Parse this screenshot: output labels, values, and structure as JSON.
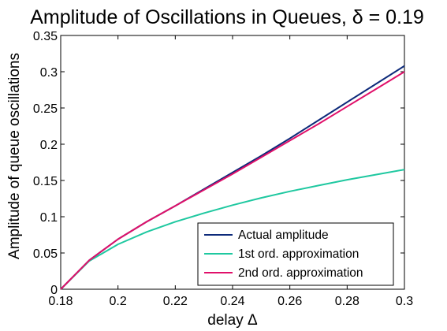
{
  "chart_data": {
    "type": "line",
    "title": "Amplitude of Oscillations in Queues, δ = 0.19",
    "xlabel": "delay Δ",
    "ylabel": "Amplitude of queue oscillations",
    "xlim": [
      0.18,
      0.3
    ],
    "ylim": [
      0,
      0.35
    ],
    "xticks": [
      0.18,
      0.2,
      0.22,
      0.24,
      0.26,
      0.28,
      0.3
    ],
    "xtick_labels": [
      "0.18",
      "0.2",
      "0.22",
      "0.24",
      "0.26",
      "0.28",
      "0.3"
    ],
    "yticks": [
      0,
      0.05,
      0.1,
      0.15,
      0.2,
      0.25,
      0.3,
      0.35
    ],
    "ytick_labels": [
      "0",
      "0.05",
      "0.1",
      "0.15",
      "0.2",
      "0.25",
      "0.3",
      "0.35"
    ],
    "grid": false,
    "legend_position": "bottom-right",
    "series": [
      {
        "name": "Actual amplitude",
        "color": "#0d2a7a",
        "x": [
          0.18,
          0.19,
          0.2,
          0.21,
          0.22,
          0.23,
          0.24,
          0.25,
          0.26,
          0.27,
          0.28,
          0.29,
          0.3
        ],
        "values": [
          0,
          0.04,
          0.069,
          0.093,
          0.115,
          0.138,
          0.161,
          0.184,
          0.208,
          0.233,
          0.258,
          0.283,
          0.308
        ]
      },
      {
        "name": "1st ord. approximation",
        "color": "#1fc8a0",
        "x": [
          0.18,
          0.19,
          0.2,
          0.21,
          0.22,
          0.23,
          0.24,
          0.25,
          0.26,
          0.27,
          0.28,
          0.29,
          0.3
        ],
        "values": [
          0,
          0.039,
          0.062,
          0.079,
          0.093,
          0.105,
          0.116,
          0.126,
          0.135,
          0.143,
          0.151,
          0.158,
          0.165
        ]
      },
      {
        "name": "2nd ord. approximation",
        "color": "#e0106a",
        "x": [
          0.18,
          0.19,
          0.2,
          0.21,
          0.22,
          0.23,
          0.24,
          0.25,
          0.26,
          0.27,
          0.28,
          0.29,
          0.3
        ],
        "values": [
          0,
          0.04,
          0.069,
          0.093,
          0.115,
          0.137,
          0.159,
          0.182,
          0.205,
          0.228,
          0.252,
          0.276,
          0.3
        ]
      }
    ]
  }
}
